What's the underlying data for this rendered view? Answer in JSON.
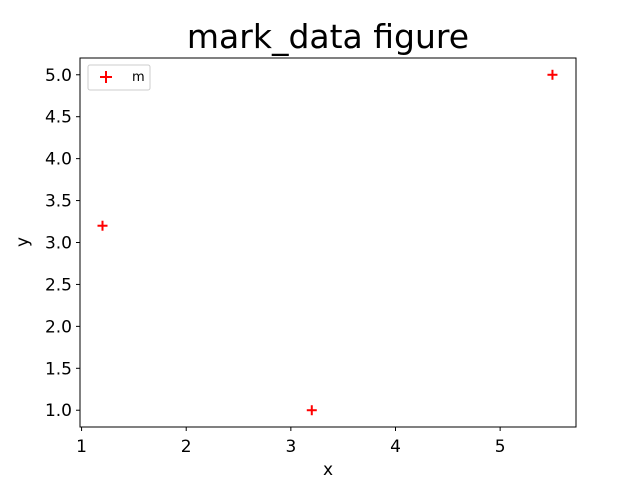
{
  "chart_data": {
    "type": "scatter",
    "title": "mark_data figure",
    "xlabel": "x",
    "ylabel": "y",
    "xlim": [
      0.985,
      5.725
    ],
    "ylim": [
      0.8,
      5.2
    ],
    "xticks": [
      1,
      2,
      3,
      4,
      5
    ],
    "yticks": [
      1.0,
      1.5,
      2.0,
      2.5,
      3.0,
      3.5,
      4.0,
      4.5,
      5.0
    ],
    "xtick_labels": [
      "1",
      "2",
      "3",
      "4",
      "5"
    ],
    "ytick_labels": [
      "1.0",
      "1.5",
      "2.0",
      "2.5",
      "3.0",
      "3.5",
      "4.0",
      "4.5",
      "5.0"
    ],
    "grid": false,
    "legend_position": "upper-left",
    "series": [
      {
        "name": "m",
        "marker": "plus",
        "color": "#ff0000",
        "points": [
          {
            "x": 1.2,
            "y": 3.2
          },
          {
            "x": 3.2,
            "y": 1.0
          },
          {
            "x": 5.5,
            "y": 5.0
          }
        ]
      }
    ]
  }
}
